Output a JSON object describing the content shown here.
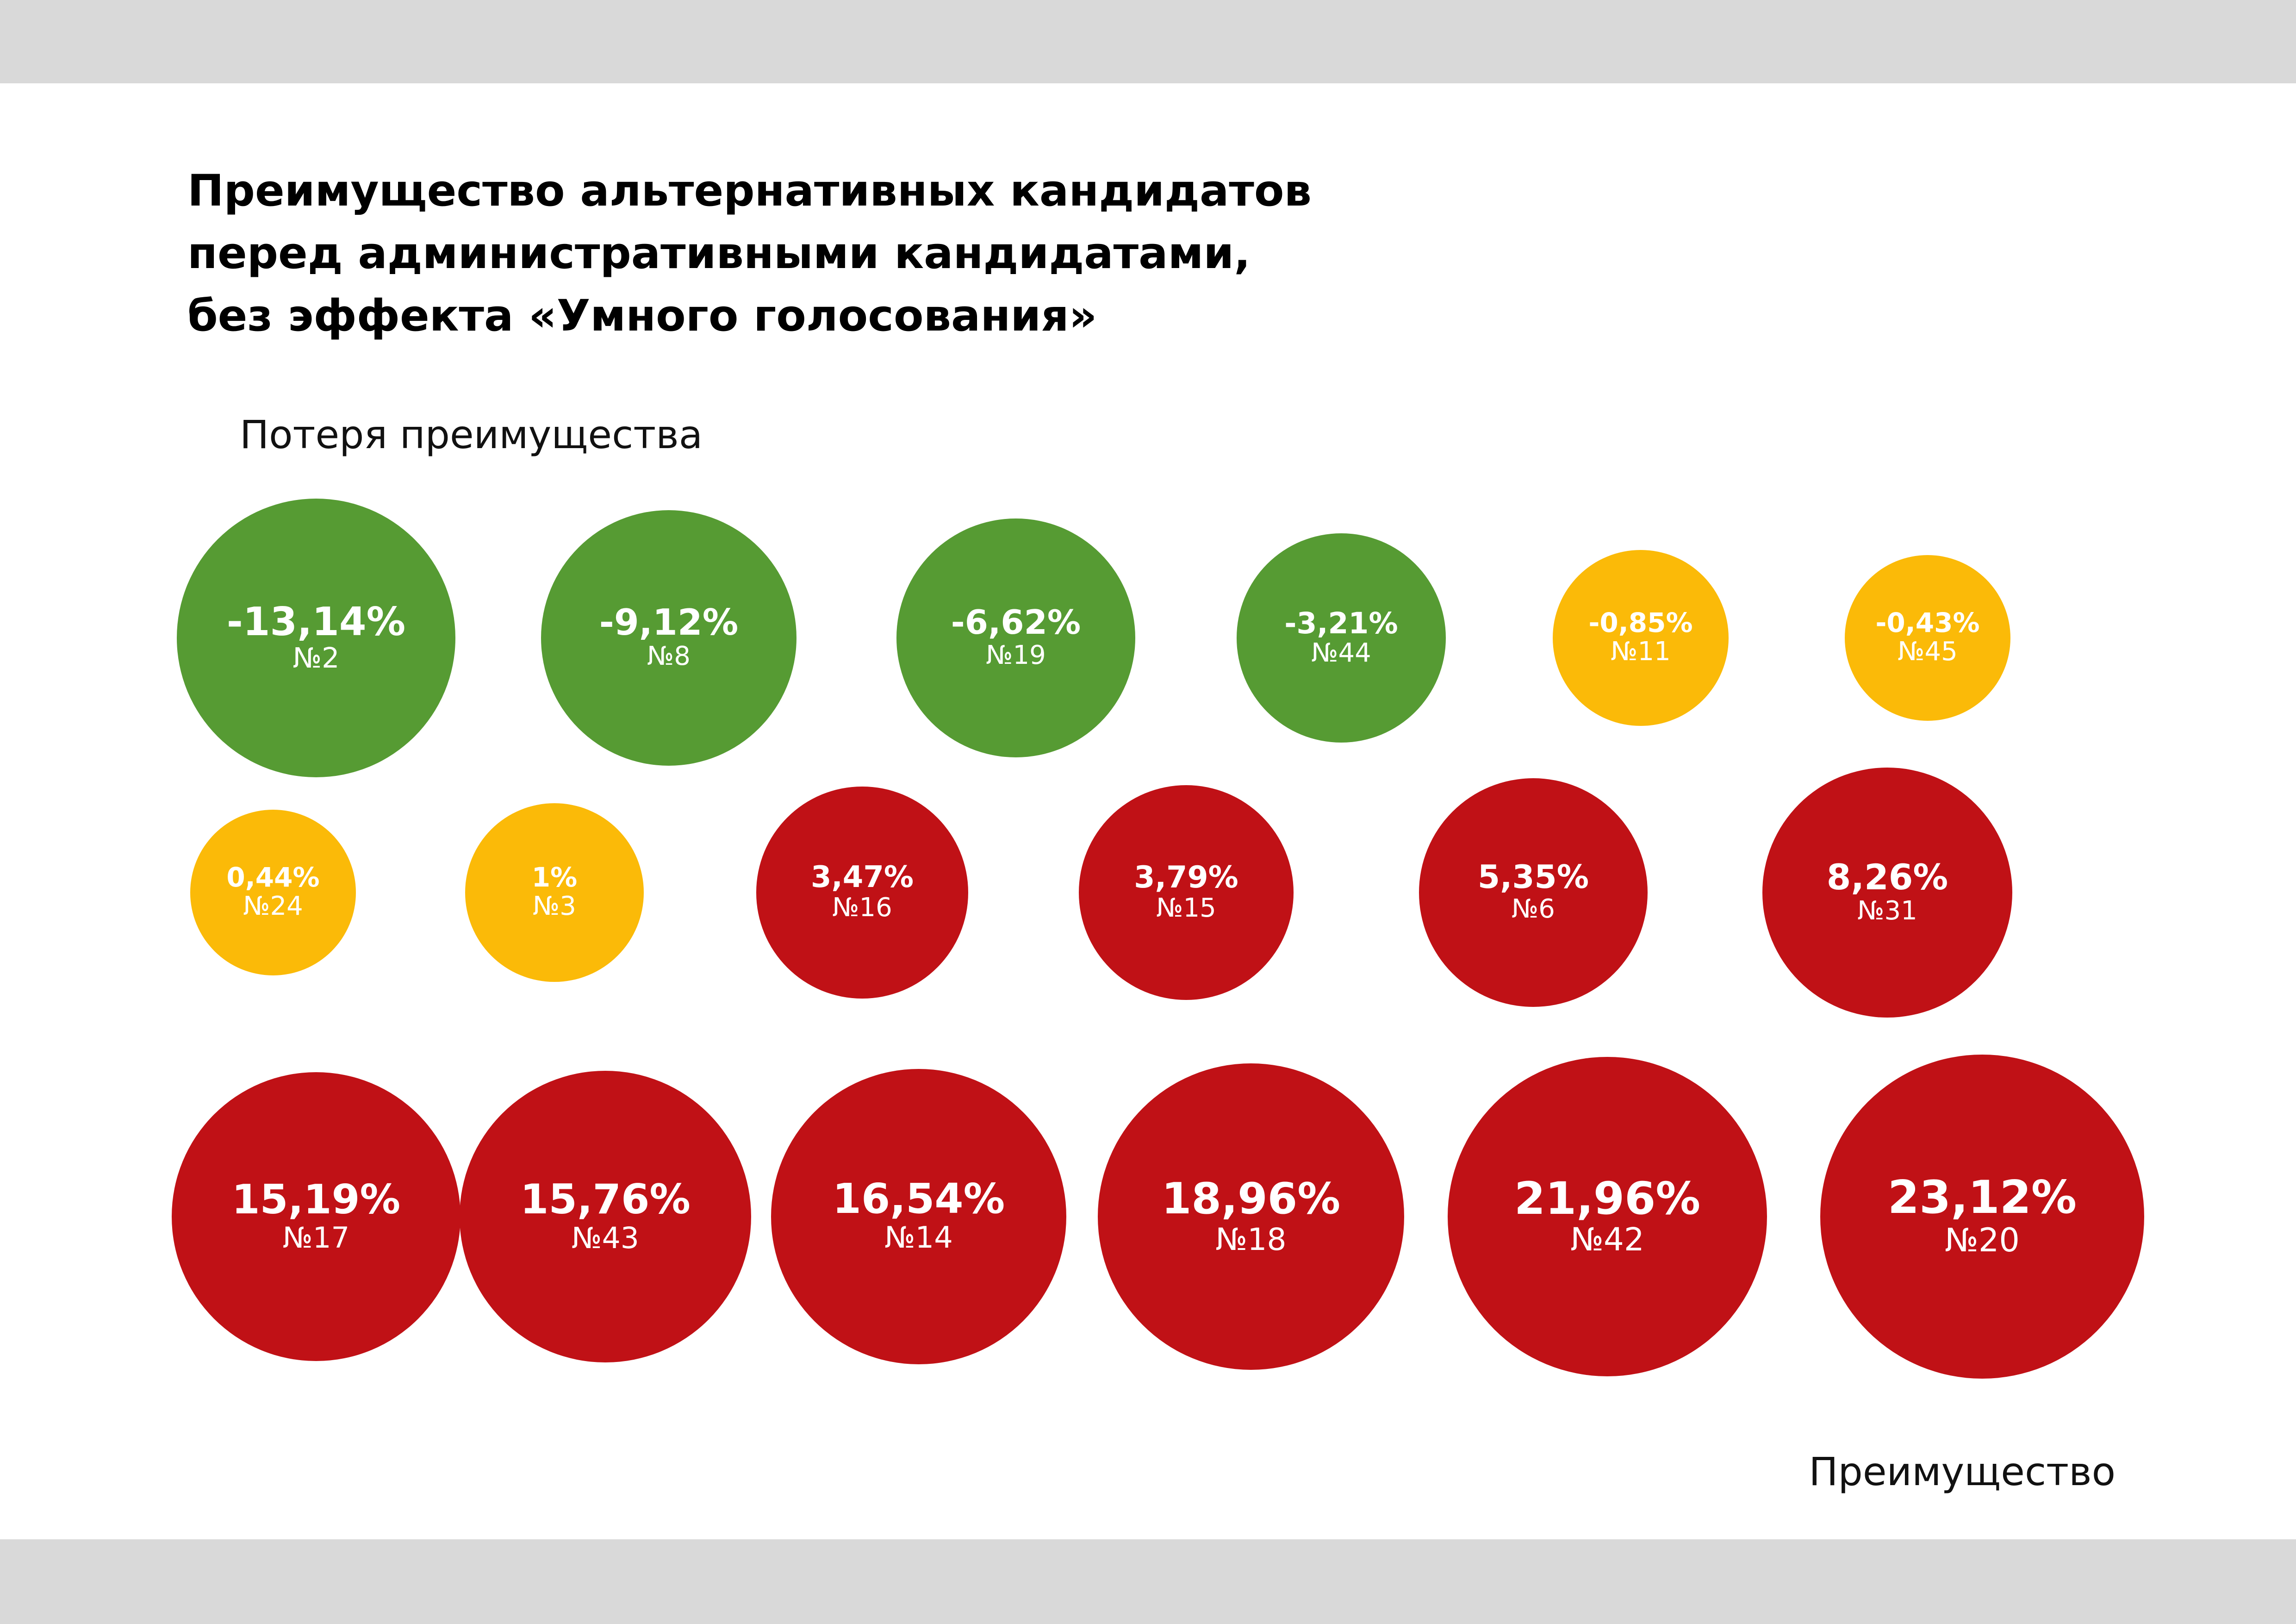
{
  "title_lines": [
    "Преимущество альтернативных кандидатов",
    "перед административными кандидатами,",
    "без эффекта «Умного голосования»"
  ],
  "labels": {
    "loss": "Потеря преимущества",
    "advantage": "Преимущество"
  },
  "colors": {
    "loss": "#569b33",
    "neutral": "#fbba08",
    "advantage": "#c01116"
  },
  "chart_data": {
    "type": "bubble",
    "title": "Преимущество альтернативных кандидатов перед административными кандидатами, без эффекта «Умного голосования»",
    "unit": "%",
    "points": [
      {
        "label": "-13,14%",
        "value": -13.14,
        "district": "№2",
        "category": "loss"
      },
      {
        "label": "-9,12%",
        "value": -9.12,
        "district": "№8",
        "category": "loss"
      },
      {
        "label": "-6,62%",
        "value": -6.62,
        "district": "№19",
        "category": "loss"
      },
      {
        "label": "-3,21%",
        "value": -3.21,
        "district": "№44",
        "category": "loss"
      },
      {
        "label": "-0,85%",
        "value": -0.85,
        "district": "№11",
        "category": "neutral"
      },
      {
        "label": "-0,43%",
        "value": -0.43,
        "district": "№45",
        "category": "neutral"
      },
      {
        "label": "0,44%",
        "value": 0.44,
        "district": "№24",
        "category": "neutral"
      },
      {
        "label": "1%",
        "value": 1,
        "district": "№3",
        "category": "neutral"
      },
      {
        "label": "3,47%",
        "value": 3.47,
        "district": "№16",
        "category": "advantage"
      },
      {
        "label": "3,79%",
        "value": 3.79,
        "district": "№15",
        "category": "advantage"
      },
      {
        "label": "5,35%",
        "value": 5.35,
        "district": "№6",
        "category": "advantage"
      },
      {
        "label": "8,26%",
        "value": 8.26,
        "district": "№31",
        "category": "advantage"
      },
      {
        "label": "15,19%",
        "value": 15.19,
        "district": "№17",
        "category": "advantage"
      },
      {
        "label": "15,76%",
        "value": 15.76,
        "district": "№43",
        "category": "advantage"
      },
      {
        "label": "16,54%",
        "value": 16.54,
        "district": "№14",
        "category": "advantage"
      },
      {
        "label": "18,96%",
        "value": 18.96,
        "district": "№18",
        "category": "advantage"
      },
      {
        "label": "21,96%",
        "value": 21.96,
        "district": "№42",
        "category": "advantage"
      },
      {
        "label": "23,12%",
        "value": 23.12,
        "district": "№20",
        "category": "advantage"
      }
    ]
  }
}
